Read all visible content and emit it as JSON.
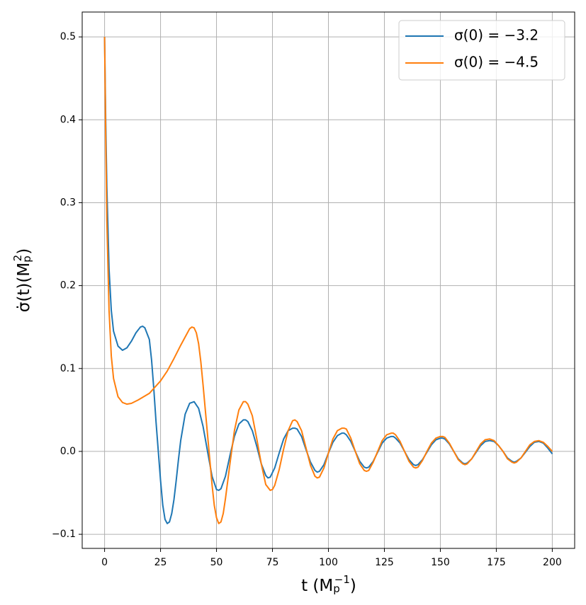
{
  "chart_data": {
    "type": "line",
    "xlabel_parts": [
      "t (M",
      "p",
      "−1",
      ")"
    ],
    "ylabel_parts": [
      "σ̇(t)(M",
      "p",
      "2",
      ")"
    ],
    "xlim": [
      -10,
      210
    ],
    "ylim": [
      -0.117,
      0.53
    ],
    "xticks": [
      0,
      25,
      50,
      75,
      100,
      125,
      150,
      175,
      200
    ],
    "yticks": [
      {
        "value": -0.1,
        "label": "−0.1"
      },
      {
        "value": 0,
        "label": "0.0"
      },
      0.1,
      0.2,
      0.3,
      0.4,
      0.5
    ],
    "grid": true,
    "legend": "upper right",
    "series": [
      {
        "name": "σ(0) = −3.2",
        "color": "#1f77b4",
        "x": [
          0,
          0.5,
          1,
          2,
          3,
          4,
          6,
          8,
          10,
          12,
          14,
          16,
          17,
          18,
          20,
          21,
          22,
          23,
          24,
          25,
          26,
          27,
          28,
          29,
          30,
          31,
          32,
          33,
          34,
          36,
          38,
          40,
          42,
          44,
          46,
          48,
          50,
          51,
          52,
          54,
          56,
          58,
          60,
          62,
          63,
          64,
          66,
          68,
          70,
          72,
          73,
          74,
          76,
          78,
          80,
          82,
          84,
          85,
          86,
          88,
          90,
          92,
          94,
          95,
          96,
          98,
          100,
          102,
          104,
          106,
          107,
          108,
          110,
          112,
          114,
          116,
          117,
          118,
          120,
          122,
          124,
          126,
          128,
          129,
          130,
          132,
          134,
          136,
          138,
          139,
          140,
          142,
          144,
          146,
          148,
          150,
          151,
          152,
          154,
          156,
          158,
          160,
          161,
          162,
          164,
          166,
          168,
          170,
          172,
          174,
          176,
          178,
          180,
          182,
          183,
          184,
          186,
          188,
          190,
          192,
          194,
          196,
          198,
          200
        ],
        "values": [
          0.5,
          0.4,
          0.32,
          0.22,
          0.17,
          0.145,
          0.127,
          0.122,
          0.125,
          0.133,
          0.143,
          0.15,
          0.151,
          0.149,
          0.135,
          0.11,
          0.075,
          0.035,
          0.0,
          -0.035,
          -0.065,
          -0.082,
          -0.087,
          -0.085,
          -0.075,
          -0.058,
          -0.035,
          -0.01,
          0.013,
          0.045,
          0.058,
          0.06,
          0.052,
          0.03,
          0.0,
          -0.03,
          -0.046,
          -0.047,
          -0.045,
          -0.03,
          -0.005,
          0.018,
          0.033,
          0.038,
          0.038,
          0.036,
          0.025,
          0.006,
          -0.015,
          -0.029,
          -0.032,
          -0.031,
          -0.02,
          -0.002,
          0.015,
          0.025,
          0.028,
          0.028,
          0.027,
          0.018,
          0.002,
          -0.013,
          -0.023,
          -0.025,
          -0.024,
          -0.016,
          -0.002,
          0.011,
          0.019,
          0.022,
          0.022,
          0.02,
          0.012,
          0.0,
          -0.012,
          -0.019,
          -0.02,
          -0.019,
          -0.012,
          -0.001,
          0.01,
          0.016,
          0.018,
          0.018,
          0.016,
          0.01,
          0.0,
          -0.01,
          -0.016,
          -0.017,
          -0.016,
          -0.01,
          -0.001,
          0.008,
          0.014,
          0.016,
          0.016,
          0.015,
          0.009,
          0.0,
          -0.009,
          -0.014,
          -0.015,
          -0.014,
          -0.009,
          -0.001,
          0.007,
          0.012,
          0.013,
          0.012,
          0.007,
          0.0,
          -0.008,
          -0.012,
          -0.013,
          -0.012,
          -0.008,
          -0.001,
          0.006,
          0.011,
          0.012,
          0.01,
          0.004,
          -0.003
        ]
      },
      {
        "name": "σ(0) = −4.5",
        "color": "#ff7f0e",
        "x": [
          0,
          0.5,
          1,
          2,
          3,
          4,
          6,
          8,
          10,
          12,
          15,
          20,
          25,
          28,
          31,
          34,
          36,
          38,
          39,
          40,
          41,
          42,
          43,
          44,
          45,
          46,
          47,
          48,
          49,
          50,
          51,
          52,
          53,
          54,
          56,
          58,
          60,
          62,
          63,
          64,
          66,
          68,
          70,
          72,
          74,
          75,
          76,
          78,
          80,
          82,
          84,
          85,
          86,
          88,
          90,
          92,
          94,
          95,
          96,
          98,
          100,
          102,
          104,
          106,
          107,
          108,
          110,
          112,
          114,
          116,
          117,
          118,
          120,
          122,
          124,
          126,
          128,
          129,
          130,
          132,
          134,
          136,
          138,
          139,
          140,
          142,
          144,
          146,
          148,
          150,
          151,
          152,
          154,
          156,
          158,
          160,
          161,
          162,
          164,
          166,
          168,
          170,
          172,
          174,
          176,
          178,
          180,
          182,
          183,
          184,
          186,
          188,
          190,
          192,
          194,
          196,
          198,
          200
        ],
        "values": [
          0.5,
          0.38,
          0.28,
          0.17,
          0.115,
          0.088,
          0.066,
          0.059,
          0.057,
          0.058,
          0.062,
          0.07,
          0.085,
          0.097,
          0.112,
          0.128,
          0.138,
          0.148,
          0.15,
          0.149,
          0.143,
          0.13,
          0.108,
          0.08,
          0.05,
          0.02,
          -0.01,
          -0.04,
          -0.065,
          -0.08,
          -0.087,
          -0.085,
          -0.075,
          -0.057,
          -0.015,
          0.025,
          0.05,
          0.06,
          0.06,
          0.057,
          0.043,
          0.015,
          -0.015,
          -0.04,
          -0.047,
          -0.046,
          -0.041,
          -0.022,
          0.003,
          0.025,
          0.037,
          0.038,
          0.036,
          0.025,
          0.004,
          -0.017,
          -0.03,
          -0.032,
          -0.031,
          -0.02,
          -0.002,
          0.015,
          0.025,
          0.028,
          0.028,
          0.027,
          0.016,
          0.0,
          -0.015,
          -0.023,
          -0.024,
          -0.023,
          -0.013,
          0.0,
          0.013,
          0.02,
          0.022,
          0.022,
          0.02,
          0.012,
          0.0,
          -0.012,
          -0.019,
          -0.02,
          -0.019,
          -0.011,
          0.0,
          0.01,
          0.016,
          0.018,
          0.018,
          0.017,
          0.01,
          0.0,
          -0.01,
          -0.015,
          -0.016,
          -0.015,
          -0.009,
          0.0,
          0.009,
          0.014,
          0.015,
          0.013,
          0.007,
          0.0,
          -0.009,
          -0.013,
          -0.014,
          -0.013,
          -0.008,
          0.0,
          0.008,
          0.012,
          0.013,
          0.011,
          0.006,
          0.0
        ]
      }
    ]
  }
}
